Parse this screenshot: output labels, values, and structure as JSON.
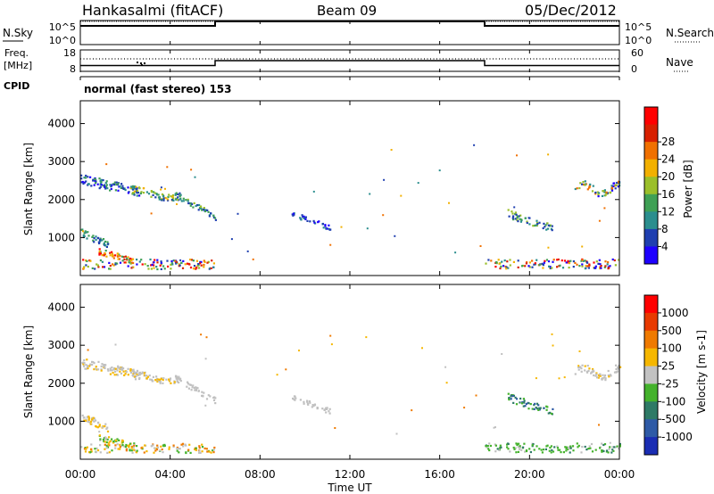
{
  "header": {
    "station": "Hankasalmi (fitACF)",
    "beam": "Beam 09",
    "date": "05/Dec/2012"
  },
  "colors": {
    "power": [
      "#1e00ff",
      "#1f3fb0",
      "#2b8e8e",
      "#3fa055",
      "#9bbf2a",
      "#f2b000",
      "#f07000",
      "#d82000",
      "#ff0000"
    ],
    "velocity": [
      "#1a2db3",
      "#2e5aa6",
      "#2e7a66",
      "#44b22c",
      "#c2c2c2",
      "#f6b700",
      "#ef7a00",
      "#e83a00",
      "#ff0000"
    ],
    "grey": "#c0c0c0"
  },
  "chart_data": [
    {
      "type": "line",
      "name": "N.Sky / N.Search",
      "left_labels": [
        "10^5",
        "10^0"
      ],
      "right_labels": [
        "10^5",
        "10^0"
      ],
      "left_title": "N.Sky",
      "right_title": "N.Search",
      "series": [
        {
          "x": [
            0,
            6,
            6,
            18,
            18,
            24
          ],
          "y": [
            0.8,
            0.8,
            1.0,
            1.0,
            0.8,
            0.8
          ]
        }
      ]
    },
    {
      "type": "line",
      "name": "Freq / Nave",
      "left_labels": [
        "18",
        "8"
      ],
      "right_labels": [
        "60",
        "0"
      ],
      "left_title_1": "Freq.",
      "left_title_2": "[MHz]",
      "right_title": "Nave",
      "series": [
        {
          "x": [
            0,
            6,
            6,
            18,
            18,
            24
          ],
          "y": [
            0.25,
            0.25,
            0.5,
            0.5,
            0.25,
            0.25
          ]
        }
      ]
    },
    {
      "type": "line",
      "name": "CPID",
      "label": "CPID",
      "text": "normal (fast stereo) 153"
    },
    {
      "type": "heatmap",
      "name": "Power",
      "ylabel": "Slant Range [km]",
      "yticks": [
        "1000",
        "2000",
        "3000",
        "4000"
      ],
      "colorbar_label": "Power [dB]",
      "colorbar_ticks": [
        "4",
        "8",
        "12",
        "16",
        "20",
        "24",
        "28"
      ]
    },
    {
      "type": "heatmap",
      "name": "Velocity",
      "ylabel": "Slant Range [km]",
      "yticks": [
        "1000",
        "2000",
        "3000",
        "4000"
      ],
      "colorbar_label": "Velocity [m s-1]",
      "colorbar_ticks": [
        "1000",
        "500",
        "100",
        "25",
        "-25",
        "-100",
        "-500",
        "-1000"
      ]
    }
  ],
  "xaxis": {
    "ticks": [
      "00:00",
      "04:00",
      "08:00",
      "12:00",
      "16:00",
      "20:00",
      "00:00"
    ],
    "title": "Time UT"
  }
}
